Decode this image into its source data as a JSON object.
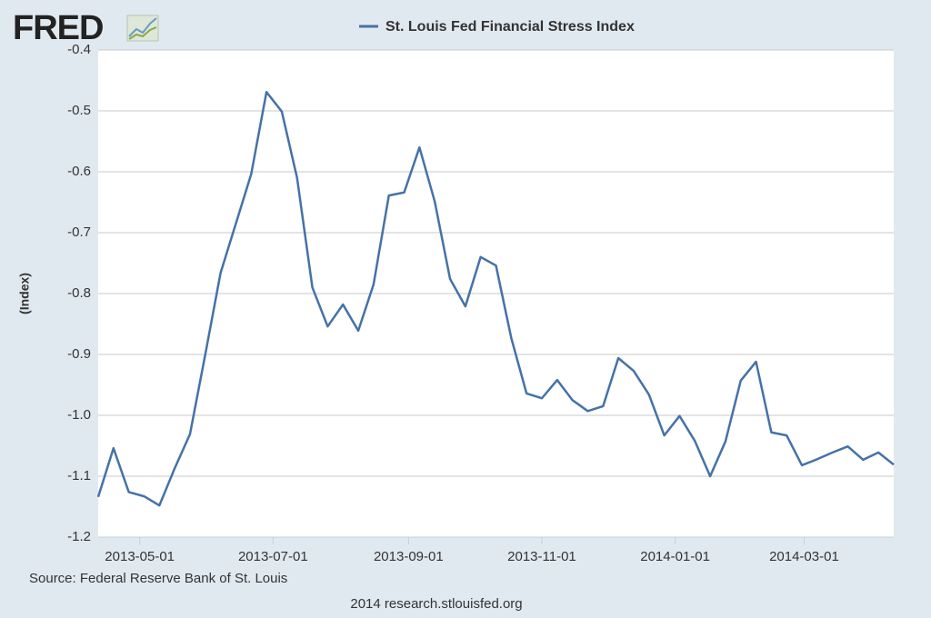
{
  "logo": "FRED",
  "chart_data": {
    "type": "line",
    "y_label": "(Index)",
    "source": "Source: Federal Reserve Bank of St. Louis",
    "footer": "2014 research.stlouisfed.org",
    "x": [
      "2013-04-12",
      "2013-04-19",
      "2013-04-26",
      "2013-05-03",
      "2013-05-10",
      "2013-05-17",
      "2013-05-24",
      "2013-05-31",
      "2013-06-07",
      "2013-06-14",
      "2013-06-21",
      "2013-06-28",
      "2013-07-05",
      "2013-07-12",
      "2013-07-19",
      "2013-07-26",
      "2013-08-02",
      "2013-08-09",
      "2013-08-16",
      "2013-08-23",
      "2013-08-30",
      "2013-09-06",
      "2013-09-13",
      "2013-09-20",
      "2013-09-27",
      "2013-10-04",
      "2013-10-11",
      "2013-10-18",
      "2013-10-25",
      "2013-11-01",
      "2013-11-08",
      "2013-11-15",
      "2013-11-22",
      "2013-11-29",
      "2013-12-06",
      "2013-12-13",
      "2013-12-20",
      "2013-12-27",
      "2014-01-03",
      "2014-01-10",
      "2014-01-17",
      "2014-01-24",
      "2014-01-31",
      "2014-02-07",
      "2014-02-14",
      "2014-02-21",
      "2014-02-28",
      "2014-03-07",
      "2014-03-14",
      "2014-03-21",
      "2014-03-28",
      "2014-04-04",
      "2014-04-11"
    ],
    "series": [
      {
        "name": "St. Louis Fed Financial Stress Index",
        "color": "#4572a7",
        "values": [
          -1.134,
          -1.054,
          -1.126,
          -1.133,
          -1.148,
          -1.087,
          -1.031,
          -0.9,
          -0.766,
          -0.685,
          -0.604,
          -0.469,
          -0.501,
          -0.61,
          -0.79,
          -0.854,
          -0.818,
          -0.861,
          -0.785,
          -0.639,
          -0.634,
          -0.56,
          -0.649,
          -0.776,
          -0.821,
          -0.74,
          -0.754,
          -0.873,
          -0.964,
          -0.972,
          -0.942,
          -0.975,
          -0.993,
          -0.985,
          -0.906,
          -0.927,
          -0.966,
          -1.033,
          -1.001,
          -1.042,
          -1.1,
          -1.043,
          -0.943,
          -0.912,
          -1.028,
          -1.033,
          -1.082,
          -1.072,
          -1.061,
          -1.051,
          -1.073,
          -1.061,
          -1.081
        ]
      }
    ],
    "xlim": [
      "2013-04-12",
      "2014-04-11"
    ],
    "xticks": [
      "2013-05-01",
      "2013-07-01",
      "2013-09-01",
      "2013-11-01",
      "2014-01-01",
      "2014-03-01"
    ],
    "ylim": [
      -1.2,
      -0.4
    ],
    "yticks": [
      -0.4,
      -0.5,
      -0.6,
      -0.7,
      -0.8,
      -0.9,
      {
        "value": -1.0,
        "label": "-1.0"
      },
      -1.1,
      -1.2
    ],
    "grid": true
  }
}
